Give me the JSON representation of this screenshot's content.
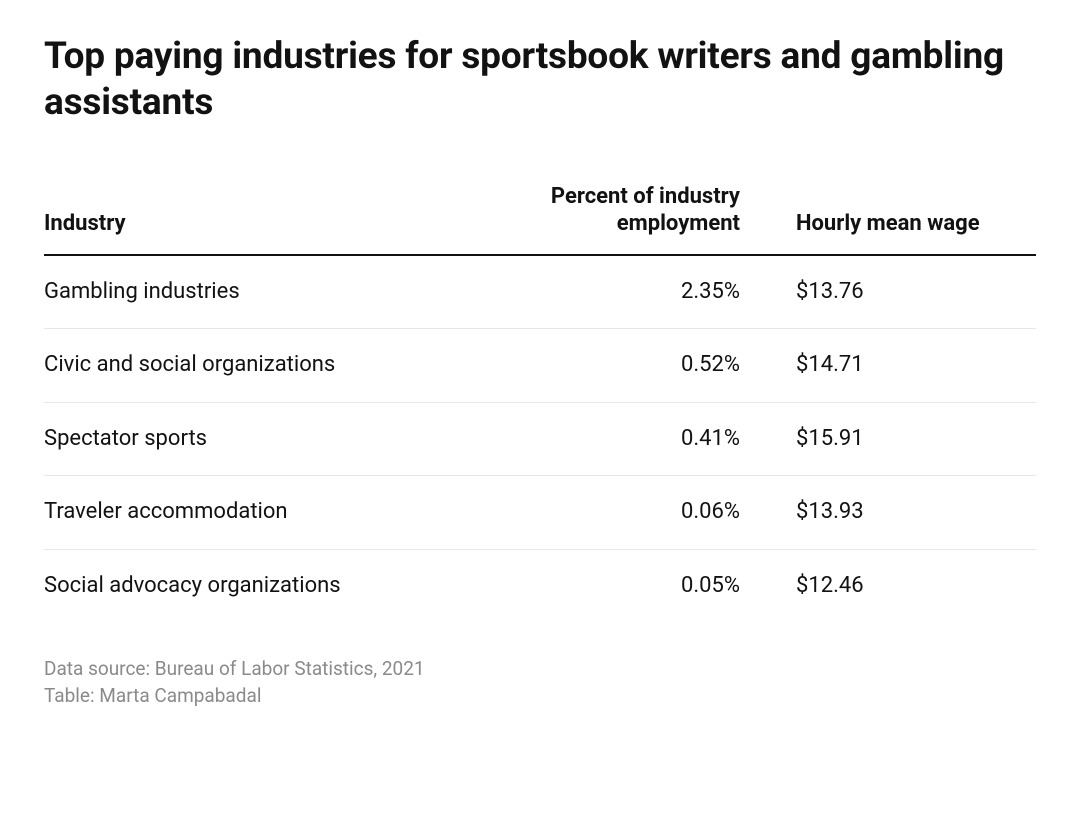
{
  "title": "Top paying industries for sportsbook writers and gambling assistants",
  "table": {
    "type": "table",
    "columns": [
      {
        "key": "industry",
        "label": "Industry",
        "align": "left",
        "width_pct": 44
      },
      {
        "key": "pct",
        "label": "Percent of industry employment",
        "align": "right",
        "width_pct": 31
      },
      {
        "key": "wage",
        "label": "Hourly mean wage",
        "align": "left",
        "width_pct": 25
      }
    ],
    "rows": [
      {
        "industry": "Gambling industries",
        "pct": "2.35%",
        "wage": "$13.76"
      },
      {
        "industry": "Civic and social organizations",
        "pct": "0.52%",
        "wage": "$14.71"
      },
      {
        "industry": "Spectator sports",
        "pct": "0.41%",
        "wage": "$15.91"
      },
      {
        "industry": "Traveler accommodation",
        "pct": "0.06%",
        "wage": "$13.93"
      },
      {
        "industry": "Social advocacy organizations",
        "pct": "0.05%",
        "wage": "$12.46"
      }
    ],
    "header_border_color": "#121212",
    "row_border_color": "#e6e6e6",
    "header_fontsize_pt": 17,
    "cell_fontsize_pt": 17,
    "text_color": "#121212"
  },
  "footer": {
    "source": "Data source: Bureau of Labor Statistics, 2021",
    "credit": "Table: Marta Campabadal",
    "text_color": "#8a8a8a",
    "fontsize_pt": 14
  },
  "page": {
    "background_color": "#ffffff",
    "title_fontsize_pt": 28,
    "title_color": "#121212",
    "title_fontweight": 700
  }
}
